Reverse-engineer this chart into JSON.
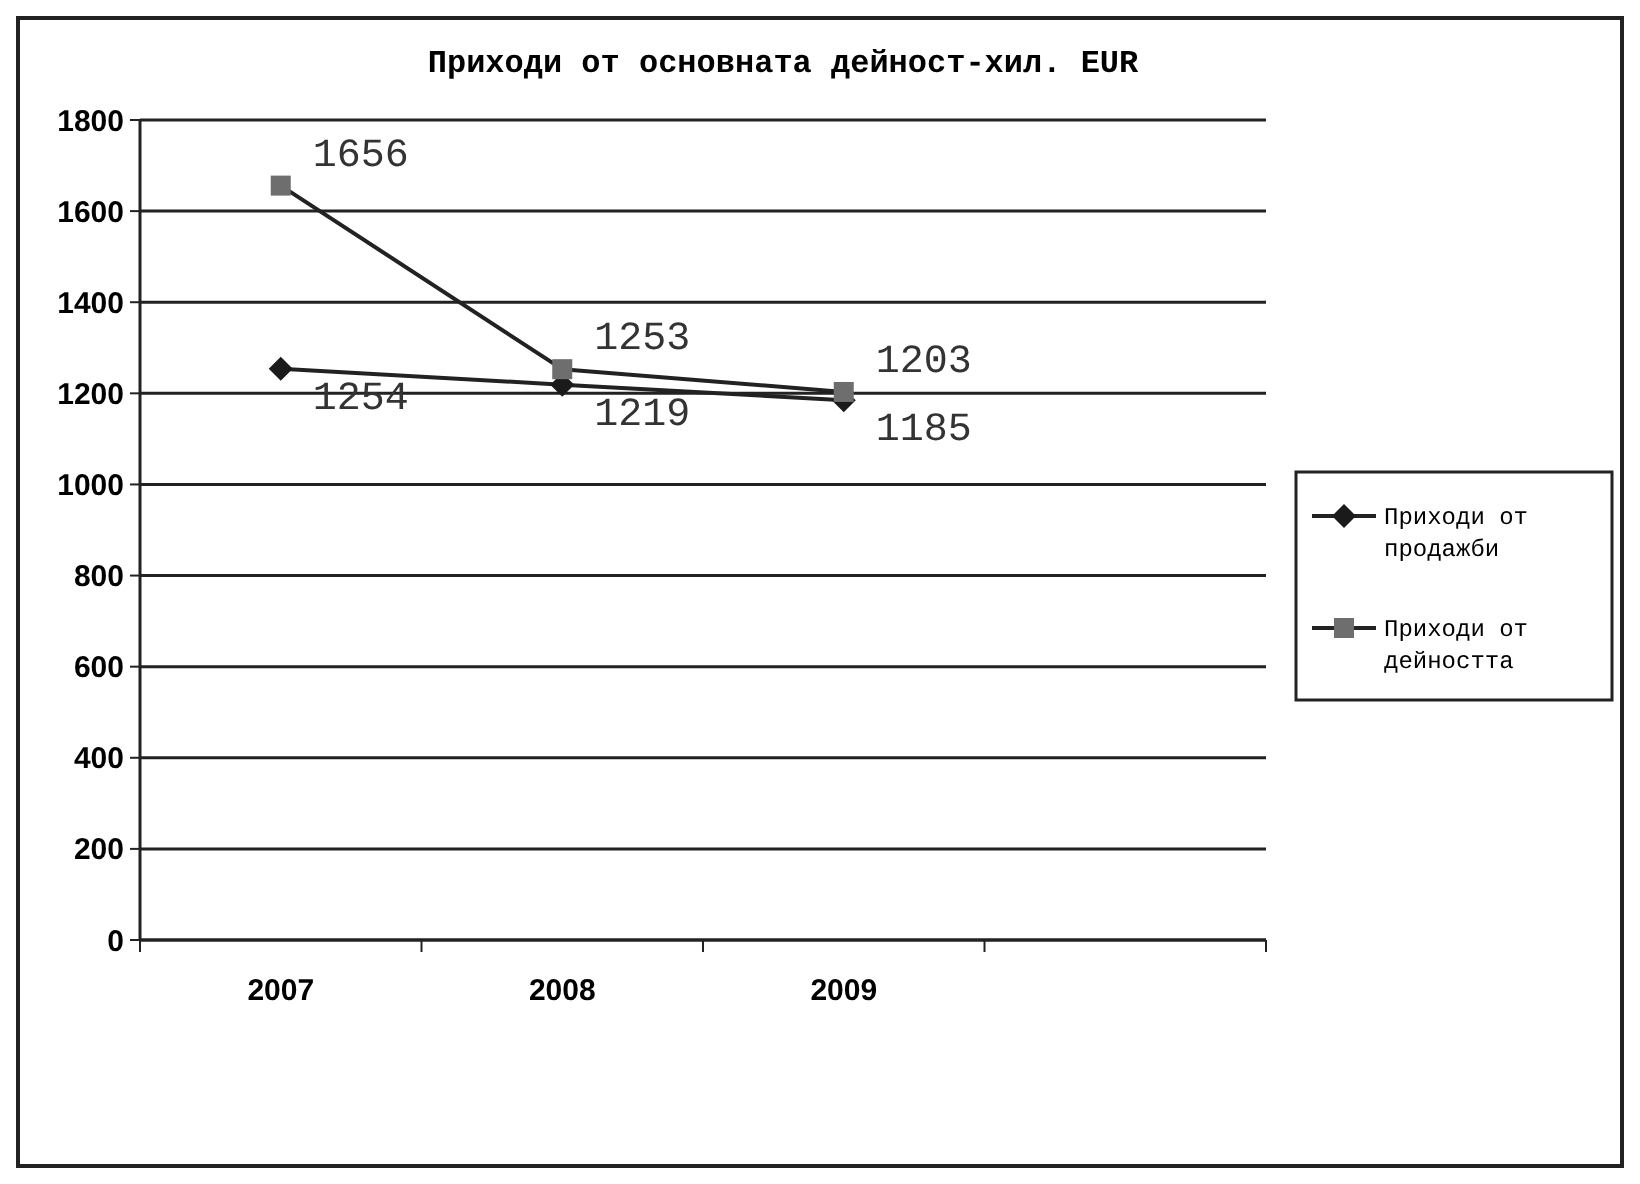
{
  "chart_data": {
    "type": "line",
    "title": "Приходи от основната дейност-хил. EUR",
    "categories": [
      "2007",
      "2008",
      "2009",
      null
    ],
    "series": [
      {
        "name": "Приходи от продажби",
        "color": "#1a1a1a",
        "marker": "diamond",
        "values": [
          1254,
          1219,
          1185,
          null
        ]
      },
      {
        "name": "Приходи от дейността",
        "color": "#6e6e6e",
        "marker": "square",
        "values": [
          1656,
          1253,
          1203,
          null
        ]
      }
    ],
    "ylim": [
      0,
      1800
    ],
    "yticks": [
      0,
      200,
      400,
      600,
      800,
      1000,
      1200,
      1400,
      1600,
      1800
    ],
    "grid": "y",
    "legend": "right",
    "data_labels": true
  }
}
